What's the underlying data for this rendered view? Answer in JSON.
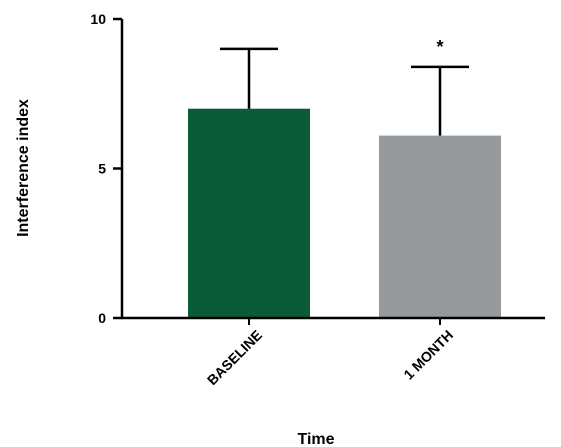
{
  "chart_data": {
    "type": "bar",
    "categories": [
      "BASELINE",
      "1 MONTH"
    ],
    "values": [
      7.0,
      6.1
    ],
    "error_upper": [
      9.0,
      8.4
    ],
    "colors": [
      "#0b5a38",
      "#969a9c"
    ],
    "xlabel": "Time",
    "ylabel": "Interference index",
    "ylim": [
      0,
      10
    ],
    "yticks": [
      "0",
      "5",
      "10"
    ],
    "annotations": [
      {
        "category": "1 MONTH",
        "text": "*"
      }
    ],
    "grid": false,
    "legend": "none"
  }
}
